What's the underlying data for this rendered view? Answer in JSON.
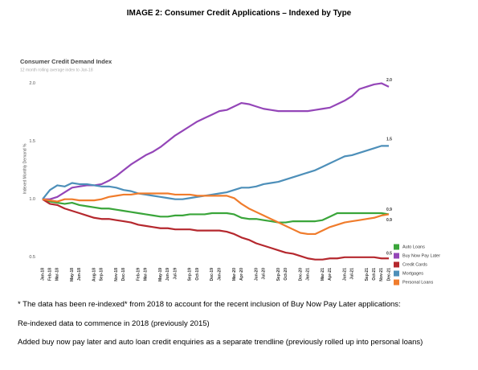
{
  "header": {
    "title": "IMAGE 2: Consumer Credit Applications – Indexed by Type"
  },
  "chart_data": {
    "type": "line",
    "title": "Consumer Credit Demand Index",
    "subtitle": "12 month rolling average index to Jan-18",
    "y_label": "Indexed Monthly Demand %",
    "categories": [
      "Jan-18",
      "Feb-18",
      "Mar-18",
      null,
      "May-18",
      "Jun-18",
      null,
      "Aug-18",
      "Sep-18",
      null,
      "Nov-18",
      "Dec-18",
      null,
      "Feb-19",
      "Mar-19",
      null,
      "May-19",
      "Jun-19",
      "Jul-19",
      null,
      "Sep-19",
      "Oct-19",
      null,
      "Dec-19",
      "Jan-20",
      null,
      "Mar-20",
      "Apr-20",
      null,
      "Jun-20",
      "Jul-20",
      null,
      "Sep-20",
      "Oct-20",
      null,
      "Dec-20",
      "Jan-21",
      null,
      "Mar-21",
      "Apr-21",
      null,
      "Jun-21",
      "Jul-21",
      null,
      "Sep-21",
      "Oct-21",
      "Nov-21",
      "Dec-21"
    ],
    "ylim": [
      0.45,
      2.08
    ],
    "yticks": [
      0.5,
      {
        "value": 1,
        "label": "1.0"
      },
      1.5,
      {
        "value": 2,
        "label": "2.0"
      }
    ],
    "legend": "right",
    "series": [
      {
        "name": "Auto Loans",
        "color": "#3aa53a",
        "values": [
          1.0,
          0.98,
          0.97,
          0.96,
          0.97,
          0.95,
          0.94,
          0.93,
          0.92,
          0.92,
          0.91,
          0.9,
          0.89,
          0.88,
          0.87,
          0.86,
          0.85,
          0.85,
          0.86,
          0.86,
          0.87,
          0.87,
          0.87,
          0.88,
          0.88,
          0.88,
          0.87,
          0.84,
          0.83,
          0.83,
          0.82,
          0.81,
          0.8,
          0.8,
          0.81,
          0.81,
          0.81,
          0.81,
          0.82,
          0.85,
          0.88,
          0.88,
          0.88,
          0.88,
          0.88,
          0.88,
          0.88,
          0.87
        ],
        "value_labels": [
          null,
          null,
          null,
          null,
          null,
          null,
          null,
          null,
          null,
          null,
          null,
          null,
          null,
          null,
          null,
          null,
          null,
          null,
          null,
          null,
          null,
          null,
          null,
          null,
          null,
          null,
          null,
          null,
          null,
          null,
          null,
          null,
          null,
          null,
          null,
          null,
          null,
          null,
          null,
          null,
          null,
          null,
          null,
          null,
          null,
          null,
          null,
          "0.9"
        ]
      },
      {
        "name": "Buy Now Pay Later",
        "color": "#9446b8",
        "values": [
          1.0,
          1.0,
          1.02,
          1.06,
          1.1,
          1.11,
          1.12,
          1.12,
          1.13,
          1.16,
          1.2,
          1.25,
          1.3,
          1.34,
          1.38,
          1.41,
          1.45,
          1.5,
          1.55,
          1.59,
          1.63,
          1.67,
          1.7,
          1.73,
          1.76,
          1.77,
          1.8,
          1.83,
          1.82,
          1.8,
          1.78,
          1.77,
          1.76,
          1.76,
          1.76,
          1.76,
          1.76,
          1.77,
          1.78,
          1.79,
          1.82,
          1.85,
          1.89,
          1.95,
          1.97,
          1.99,
          2.0,
          1.97
        ],
        "value_labels": [
          null,
          null,
          null,
          null,
          null,
          null,
          null,
          null,
          null,
          null,
          null,
          null,
          null,
          null,
          null,
          null,
          null,
          null,
          null,
          null,
          null,
          null,
          null,
          null,
          null,
          null,
          null,
          null,
          null,
          null,
          null,
          null,
          null,
          null,
          null,
          null,
          null,
          null,
          null,
          null,
          null,
          null,
          null,
          null,
          null,
          null,
          null,
          "2.0"
        ]
      },
      {
        "name": "Credit Cards",
        "color": "#b5282e",
        "values": [
          1.0,
          0.96,
          0.95,
          0.92,
          0.9,
          0.88,
          0.86,
          0.84,
          0.83,
          0.83,
          0.82,
          0.81,
          0.8,
          0.78,
          0.77,
          0.76,
          0.75,
          0.75,
          0.74,
          0.74,
          0.74,
          0.73,
          0.73,
          0.73,
          0.73,
          0.72,
          0.7,
          0.67,
          0.65,
          0.62,
          0.6,
          0.58,
          0.56,
          0.54,
          0.53,
          0.51,
          0.49,
          0.48,
          0.48,
          0.49,
          0.49,
          0.5,
          0.5,
          0.5,
          0.5,
          0.5,
          0.49,
          0.49
        ],
        "value_labels": [
          null,
          null,
          null,
          null,
          null,
          null,
          null,
          null,
          null,
          null,
          null,
          null,
          null,
          null,
          null,
          null,
          null,
          null,
          null,
          null,
          null,
          null,
          null,
          null,
          null,
          null,
          null,
          null,
          null,
          null,
          null,
          null,
          null,
          null,
          null,
          null,
          null,
          null,
          null,
          null,
          null,
          null,
          null,
          null,
          null,
          null,
          null,
          "0.5"
        ]
      },
      {
        "name": "Mortgages",
        "color": "#4d8fb9",
        "values": [
          1.0,
          1.08,
          1.12,
          1.11,
          1.14,
          1.13,
          1.13,
          1.12,
          1.11,
          1.11,
          1.1,
          1.08,
          1.07,
          1.05,
          1.04,
          1.03,
          1.02,
          1.01,
          1.0,
          1.0,
          1.01,
          1.02,
          1.03,
          1.04,
          1.05,
          1.06,
          1.08,
          1.1,
          1.1,
          1.11,
          1.13,
          1.14,
          1.15,
          1.17,
          1.19,
          1.21,
          1.23,
          1.25,
          1.28,
          1.31,
          1.34,
          1.37,
          1.38,
          1.4,
          1.42,
          1.44,
          1.46,
          1.46
        ],
        "value_labels": [
          null,
          null,
          null,
          null,
          null,
          null,
          null,
          null,
          null,
          null,
          null,
          null,
          null,
          null,
          null,
          null,
          null,
          null,
          null,
          null,
          null,
          null,
          null,
          null,
          null,
          null,
          null,
          null,
          null,
          null,
          null,
          null,
          null,
          null,
          null,
          null,
          null,
          null,
          null,
          null,
          null,
          null,
          null,
          null,
          null,
          null,
          null,
          "1.5"
        ]
      },
      {
        "name": "Personal Loans",
        "color": "#f07c2c",
        "values": [
          1.0,
          0.99,
          0.98,
          1.0,
          1.0,
          0.99,
          0.99,
          0.99,
          1.0,
          1.02,
          1.03,
          1.04,
          1.04,
          1.05,
          1.05,
          1.05,
          1.05,
          1.05,
          1.04,
          1.04,
          1.04,
          1.03,
          1.03,
          1.03,
          1.03,
          1.03,
          1.01,
          0.96,
          0.92,
          0.89,
          0.86,
          0.83,
          0.8,
          0.77,
          0.74,
          0.71,
          0.7,
          0.7,
          0.73,
          0.76,
          0.78,
          0.8,
          0.81,
          0.82,
          0.83,
          0.84,
          0.86,
          0.87
        ],
        "value_labels": [
          null,
          null,
          null,
          null,
          null,
          null,
          null,
          null,
          null,
          null,
          null,
          null,
          null,
          null,
          null,
          null,
          null,
          null,
          null,
          null,
          null,
          null,
          null,
          null,
          null,
          null,
          null,
          null,
          null,
          null,
          null,
          null,
          null,
          null,
          null,
          null,
          null,
          null,
          null,
          null,
          null,
          null,
          null,
          null,
          null,
          null,
          null,
          "0.9"
        ]
      }
    ]
  },
  "notes": [
    "* The data has been re-indexed* from 2018 to account for the recent inclusion of Buy Now Pay Later applications:",
    "Re-indexed data to commence in 2018 (previously 2015)",
    "Added buy now pay later and auto loan credit enquiries as a separate trendline (previously rolled up into personal loans)"
  ]
}
